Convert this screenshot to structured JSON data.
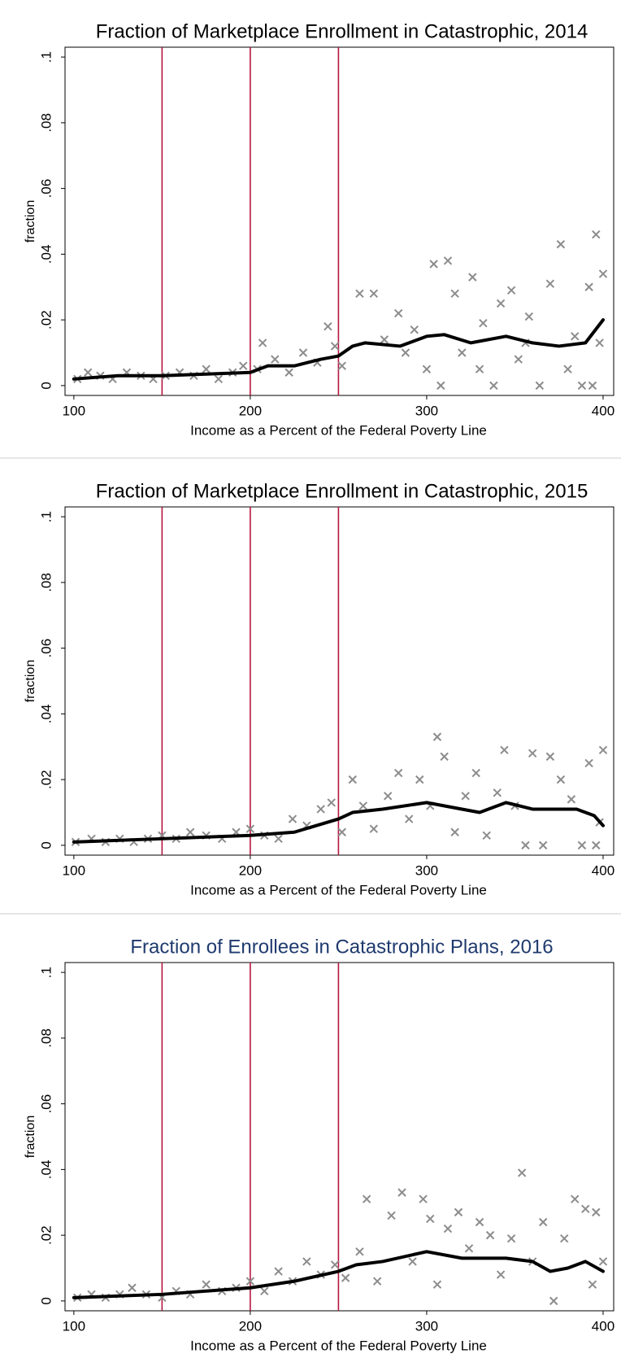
{
  "chart_data": [
    {
      "type": "scatter",
      "title": "Fraction of Marketplace Enrollment in Catastrophic, 2014",
      "title_color": "#000000",
      "xlabel": "Income as a Percent of the Federal Poverty Line",
      "ylabel": "fraction",
      "xlim": [
        95,
        406
      ],
      "ylim": [
        -0.003,
        0.103
      ],
      "xticks": [
        100,
        200,
        300,
        400
      ],
      "yticks": [
        0,
        {
          "value": 0.02,
          "label": ".02"
        },
        {
          "value": 0.04,
          "label": ".04"
        },
        {
          "value": 0.06,
          "label": ".06"
        },
        {
          "value": 0.08,
          "label": ".08"
        },
        {
          "value": 0.1,
          "label": ".1"
        }
      ],
      "vlines": [
        150,
        200,
        250
      ],
      "vline_color": "#b5173f",
      "series": [
        {
          "type": "scatter",
          "color": "#8c8c8c",
          "x": [
            102,
            108,
            115,
            122,
            130,
            138,
            145,
            152,
            160,
            168,
            175,
            182,
            190,
            196,
            204,
            207,
            214,
            222,
            230,
            238,
            244,
            248,
            252,
            262,
            270,
            276,
            284,
            288,
            293,
            300,
            304,
            308,
            312,
            316,
            320,
            326,
            330,
            332,
            338,
            342,
            348,
            352,
            356,
            358,
            364,
            370,
            376,
            380,
            384,
            388,
            392,
            394,
            396,
            398,
            400
          ],
          "values": [
            0.002,
            0.004,
            0.003,
            0.002,
            0.004,
            0.003,
            0.002,
            0.003,
            0.004,
            0.003,
            0.005,
            0.002,
            0.004,
            0.006,
            0.005,
            0.013,
            0.008,
            0.004,
            0.01,
            0.007,
            0.018,
            0.012,
            0.006,
            0.028,
            0.028,
            0.014,
            0.022,
            0.01,
            0.017,
            0.005,
            0.037,
            0,
            0.038,
            0.028,
            0.01,
            0.033,
            0.005,
            0.019,
            0,
            0.025,
            0.029,
            0.008,
            0.013,
            0.021,
            0,
            0.031,
            0.043,
            0.005,
            0.015,
            0,
            0.03,
            0,
            0.046,
            0.013,
            0.034
          ]
        },
        {
          "type": "line",
          "color": "#000000",
          "x": [
            100,
            125,
            150,
            175,
            200,
            210,
            225,
            240,
            250,
            258,
            265,
            285,
            300,
            310,
            325,
            345,
            360,
            375,
            390,
            400
          ],
          "values": [
            0.002,
            0.003,
            0.003,
            0.0035,
            0.004,
            0.006,
            0.006,
            0.008,
            0.009,
            0.012,
            0.013,
            0.012,
            0.015,
            0.0155,
            0.013,
            0.015,
            0.013,
            0.012,
            0.013,
            0.02
          ]
        }
      ]
    },
    {
      "type": "scatter",
      "title": "Fraction of Marketplace Enrollment in Catastrophic, 2015",
      "title_color": "#000000",
      "xlabel": "Income as a Percent of the Federal Poverty Line",
      "ylabel": "fraction",
      "xlim": [
        95,
        406
      ],
      "ylim": [
        -0.003,
        0.103
      ],
      "xticks": [
        100,
        200,
        300,
        400
      ],
      "yticks": [
        0,
        {
          "value": 0.02,
          "label": ".02"
        },
        {
          "value": 0.04,
          "label": ".04"
        },
        {
          "value": 0.06,
          "label": ".06"
        },
        {
          "value": 0.08,
          "label": ".08"
        },
        {
          "value": 0.1,
          "label": ".1"
        }
      ],
      "vlines": [
        150,
        200,
        250
      ],
      "vline_color": "#b5173f",
      "series": [
        {
          "type": "scatter",
          "color": "#8c8c8c",
          "x": [
            101,
            110,
            118,
            126,
            134,
            142,
            150,
            158,
            166,
            175,
            184,
            192,
            200,
            208,
            216,
            224,
            232,
            240,
            246,
            252,
            258,
            264,
            270,
            278,
            284,
            290,
            296,
            302,
            306,
            310,
            316,
            322,
            328,
            334,
            340,
            344,
            350,
            356,
            360,
            366,
            370,
            376,
            382,
            388,
            392,
            396,
            398,
            400
          ],
          "values": [
            0.001,
            0.002,
            0.001,
            0.002,
            0.001,
            0.002,
            0.003,
            0.002,
            0.004,
            0.003,
            0.002,
            0.004,
            0.005,
            0.003,
            0.002,
            0.008,
            0.006,
            0.011,
            0.013,
            0.004,
            0.02,
            0.012,
            0.005,
            0.015,
            0.022,
            0.008,
            0.02,
            0.012,
            0.033,
            0.027,
            0.004,
            0.015,
            0.022,
            0.003,
            0.016,
            0.029,
            0.012,
            0,
            0.028,
            0,
            0.027,
            0.02,
            0.014,
            0,
            0.025,
            0,
            0.007,
            0.029
          ]
        },
        {
          "type": "line",
          "color": "#000000",
          "x": [
            100,
            150,
            200,
            225,
            250,
            258,
            275,
            300,
            320,
            330,
            345,
            360,
            385,
            395,
            400
          ],
          "values": [
            0.001,
            0.002,
            0.003,
            0.004,
            0.008,
            0.01,
            0.011,
            0.013,
            0.011,
            0.01,
            0.013,
            0.011,
            0.011,
            0.009,
            0.006
          ]
        }
      ]
    },
    {
      "type": "scatter",
      "title": "Fraction of Enrollees in Catastrophic Plans, 2016",
      "title_color": "#1f3a6e",
      "xlabel": "Income as a Percent of the Federal Poverty Line",
      "ylabel": "fraction",
      "xlim": [
        95,
        406
      ],
      "ylim": [
        -0.003,
        0.103
      ],
      "xticks": [
        100,
        200,
        300,
        400
      ],
      "yticks": [
        0,
        {
          "value": 0.02,
          "label": ".02"
        },
        {
          "value": 0.04,
          "label": ".04"
        },
        {
          "value": 0.06,
          "label": ".06"
        },
        {
          "value": 0.08,
          "label": ".08"
        },
        {
          "value": 0.1,
          "label": ".1"
        }
      ],
      "vlines": [
        150,
        200,
        250
      ],
      "vline_color": "#b5173f",
      "series": [
        {
          "type": "scatter",
          "color": "#8c8c8c",
          "x": [
            102,
            110,
            118,
            126,
            133,
            141,
            150,
            158,
            166,
            175,
            184,
            192,
            200,
            208,
            216,
            224,
            232,
            240,
            248,
            254,
            262,
            266,
            272,
            280,
            286,
            292,
            298,
            302,
            306,
            312,
            318,
            324,
            330,
            336,
            342,
            348,
            354,
            360,
            366,
            372,
            378,
            384,
            390,
            394,
            396,
            400
          ],
          "values": [
            0.001,
            0.002,
            0.001,
            0.002,
            0.004,
            0.002,
            0.001,
            0.003,
            0.002,
            0.005,
            0.003,
            0.004,
            0.006,
            0.003,
            0.009,
            0.006,
            0.012,
            0.008,
            0.011,
            0.007,
            0.015,
            0.031,
            0.006,
            0.026,
            0.033,
            0.012,
            0.031,
            0.025,
            0.005,
            0.022,
            0.027,
            0.016,
            0.024,
            0.02,
            0.008,
            0.019,
            0.039,
            0.012,
            0.024,
            0,
            0.019,
            0.031,
            0.028,
            0.005,
            0.027,
            0.012
          ]
        },
        {
          "type": "line",
          "color": "#000000",
          "x": [
            100,
            150,
            200,
            225,
            250,
            260,
            275,
            300,
            320,
            345,
            360,
            370,
            380,
            390,
            400
          ],
          "values": [
            0.001,
            0.002,
            0.004,
            0.006,
            0.009,
            0.011,
            0.012,
            0.015,
            0.013,
            0.013,
            0.012,
            0.009,
            0.01,
            0.012,
            0.009
          ]
        }
      ]
    }
  ]
}
